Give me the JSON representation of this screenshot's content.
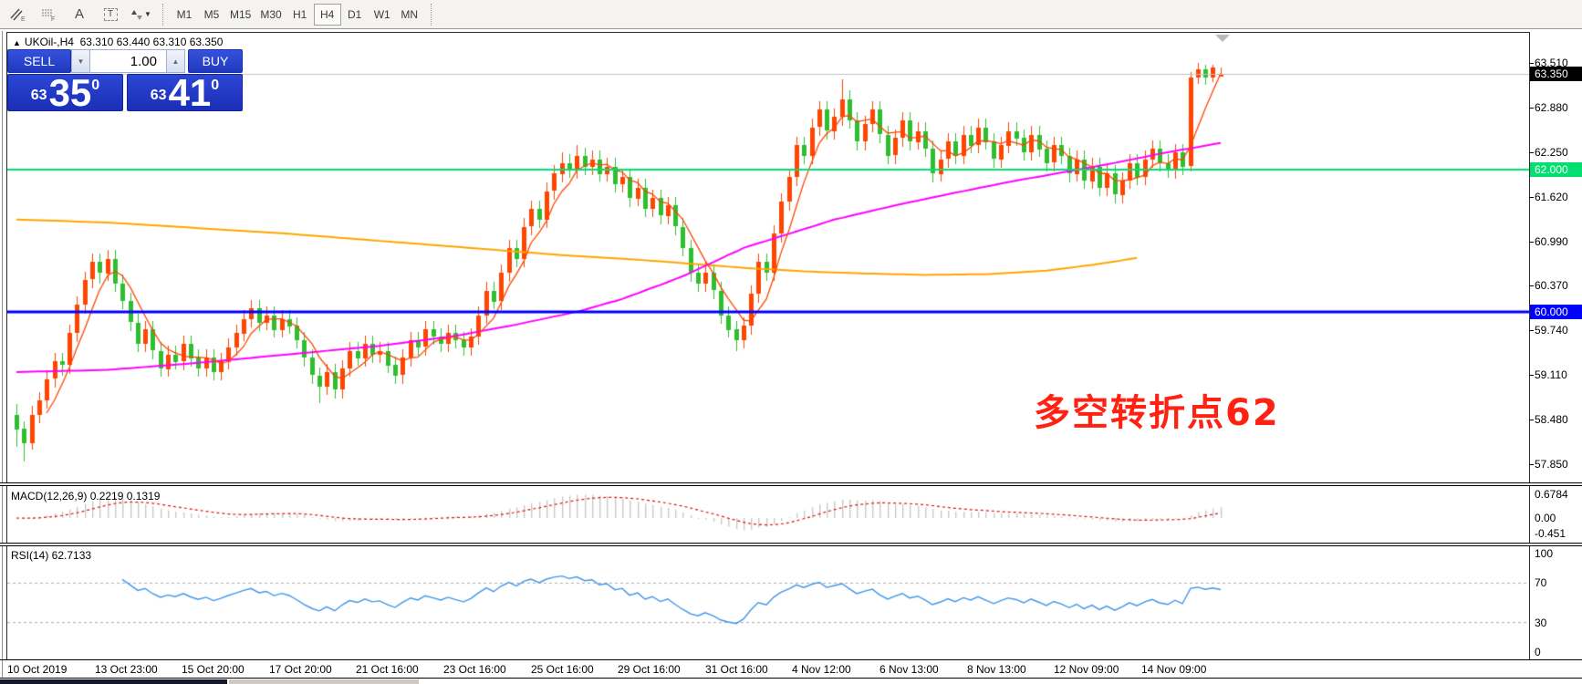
{
  "toolbar": {
    "icons": [
      {
        "name": "equidistant-channel-icon",
        "sub": "E"
      },
      {
        "name": "fibonacci-icon",
        "sub": "F"
      },
      {
        "name": "text-icon",
        "glyph": "A"
      },
      {
        "name": "text-label-icon",
        "glyph": "T"
      },
      {
        "name": "arrows-icon",
        "glyph": "▾"
      }
    ],
    "timeframes": [
      "M1",
      "M5",
      "M15",
      "M30",
      "H1",
      "H4",
      "D1",
      "W1",
      "MN"
    ],
    "active_timeframe": "H4"
  },
  "chart_header": {
    "arrow": "▲",
    "text": "UKOil-,H4  63.310 63.440 63.310 63.350"
  },
  "trade_panel": {
    "sell_label": "SELL",
    "buy_label": "BUY",
    "volume": "1.00",
    "spinner_down": "▼",
    "spinner_up": "▲",
    "sell_price_small": "63",
    "sell_price_big": "35",
    "sell_price_sup": "0",
    "buy_price_small": "63",
    "buy_price_big": "41",
    "buy_price_sup": "0"
  },
  "annotation": {
    "text": "多空转折点62",
    "color": "#ff2212"
  },
  "macd_panel": {
    "label": "MACD(12,26,9) 0.2219 0.1319"
  },
  "rsi_panel": {
    "label": "RSI(14) 62.7133"
  },
  "colors": {
    "candle_up": "#ff4500",
    "candle_down": "#2fbe2f",
    "ma_fast_red": "#ff4500",
    "ma_mid_magenta": "#ff00ff",
    "ma_slow_orange": "#ffa500",
    "level_green": "#00e070",
    "level_blue": "#0000ff",
    "current_price_line": "#c0c0c0",
    "current_price_badge": "#000000",
    "macd_histogram": "#c8c8c8",
    "macd_signal": "#e01010",
    "rsi_line": "#3e96e8",
    "rsi_level_dash": "#aaaaaa"
  },
  "chart_data": {
    "type": "candlestick",
    "symbol": "UKOil-",
    "timeframe": "H4",
    "price_axis_ticks": [
      63.51,
      62.88,
      62.25,
      61.62,
      60.99,
      60.37,
      59.74,
      59.11,
      58.48,
      57.85
    ],
    "levels": {
      "green_line": 62.0,
      "blue_line": 60.0,
      "current_price": 63.35
    },
    "badges": {
      "current": "63.350",
      "green": "62.000",
      "blue": "60.000"
    },
    "time_labels": [
      "10 Oct 2019",
      "13 Oct 23:00",
      "15 Oct 20:00",
      "17 Oct 20:00",
      "21 Oct 16:00",
      "23 Oct 16:00",
      "25 Oct 16:00",
      "29 Oct 16:00",
      "31 Oct 16:00",
      "4 Nov 12:00",
      "6 Nov 13:00",
      "8 Nov 13:00",
      "12 Nov 09:00",
      "14 Nov 09:00"
    ],
    "ohlc": [
      [
        58.55,
        58.7,
        58.1,
        58.35
      ],
      [
        58.35,
        58.45,
        57.88,
        58.15
      ],
      [
        58.15,
        58.67,
        58.05,
        58.55
      ],
      [
        58.55,
        58.87,
        58.43,
        58.75
      ],
      [
        58.75,
        59.17,
        58.63,
        59.05
      ],
      [
        59.05,
        59.42,
        58.93,
        59.3
      ],
      [
        59.3,
        59.42,
        59.1,
        59.25
      ],
      [
        59.25,
        59.82,
        59.13,
        59.7
      ],
      [
        59.7,
        60.22,
        59.58,
        60.1
      ],
      [
        60.1,
        60.57,
        59.98,
        60.45
      ],
      [
        60.45,
        60.82,
        60.33,
        60.7
      ],
      [
        60.7,
        60.82,
        60.4,
        60.55
      ],
      [
        60.55,
        60.87,
        60.43,
        60.75
      ],
      [
        60.75,
        60.87,
        60.28,
        60.4
      ],
      [
        60.4,
        60.52,
        60.03,
        60.15
      ],
      [
        60.15,
        60.27,
        59.73,
        59.85
      ],
      [
        59.85,
        59.97,
        59.43,
        59.55
      ],
      [
        59.55,
        59.87,
        59.43,
        59.75
      ],
      [
        59.75,
        59.87,
        59.33,
        59.45
      ],
      [
        59.45,
        59.57,
        59.08,
        59.2
      ],
      [
        59.2,
        59.52,
        59.08,
        59.4
      ],
      [
        59.4,
        59.52,
        59.18,
        59.3
      ],
      [
        59.3,
        59.67,
        59.18,
        59.55
      ],
      [
        59.55,
        59.67,
        59.23,
        59.35
      ],
      [
        59.35,
        59.47,
        59.08,
        59.2
      ],
      [
        59.2,
        59.47,
        59.08,
        59.35
      ],
      [
        59.35,
        59.47,
        59.03,
        59.15
      ],
      [
        59.15,
        59.42,
        59.03,
        59.3
      ],
      [
        59.3,
        59.62,
        59.18,
        59.5
      ],
      [
        59.5,
        59.82,
        59.38,
        59.7
      ],
      [
        59.7,
        60.02,
        59.58,
        59.9
      ],
      [
        59.9,
        60.17,
        59.78,
        60.05
      ],
      [
        60.05,
        60.17,
        59.73,
        59.85
      ],
      [
        59.85,
        60.07,
        59.73,
        59.95
      ],
      [
        59.95,
        60.07,
        59.63,
        59.75
      ],
      [
        59.75,
        60.02,
        59.63,
        59.9
      ],
      [
        59.9,
        60.02,
        59.68,
        59.8
      ],
      [
        59.8,
        59.92,
        59.48,
        59.6
      ],
      [
        59.6,
        59.72,
        59.23,
        59.35
      ],
      [
        59.35,
        59.47,
        58.98,
        59.1
      ],
      [
        59.1,
        59.22,
        58.72,
        58.95
      ],
      [
        58.95,
        59.27,
        58.83,
        59.15
      ],
      [
        59.15,
        59.27,
        58.78,
        58.9
      ],
      [
        58.9,
        59.32,
        58.78,
        59.2
      ],
      [
        59.2,
        59.57,
        59.08,
        59.45
      ],
      [
        59.45,
        59.57,
        59.23,
        59.35
      ],
      [
        59.35,
        59.67,
        59.23,
        59.55
      ],
      [
        59.55,
        59.67,
        59.28,
        59.4
      ],
      [
        59.4,
        59.57,
        59.28,
        59.45
      ],
      [
        59.45,
        59.57,
        59.13,
        59.25
      ],
      [
        59.25,
        59.37,
        58.98,
        59.1
      ],
      [
        59.1,
        59.47,
        58.98,
        59.35
      ],
      [
        59.35,
        59.72,
        59.23,
        59.6
      ],
      [
        59.6,
        59.72,
        59.38,
        59.5
      ],
      [
        59.5,
        59.87,
        59.38,
        59.75
      ],
      [
        59.75,
        59.87,
        59.53,
        59.65
      ],
      [
        59.65,
        59.77,
        59.43,
        59.55
      ],
      [
        59.55,
        59.82,
        59.43,
        59.7
      ],
      [
        59.7,
        59.82,
        59.48,
        59.6
      ],
      [
        59.6,
        59.72,
        59.38,
        59.5
      ],
      [
        59.5,
        59.77,
        59.38,
        59.65
      ],
      [
        59.65,
        60.07,
        59.53,
        59.95
      ],
      [
        59.95,
        60.42,
        59.83,
        60.3
      ],
      [
        60.3,
        60.42,
        60.03,
        60.15
      ],
      [
        60.15,
        60.67,
        60.03,
        60.55
      ],
      [
        60.55,
        61.02,
        60.43,
        60.9
      ],
      [
        60.9,
        61.02,
        60.63,
        60.75
      ],
      [
        60.75,
        61.32,
        60.63,
        61.2
      ],
      [
        61.2,
        61.57,
        61.08,
        61.45
      ],
      [
        61.45,
        61.57,
        61.18,
        61.3
      ],
      [
        61.3,
        61.82,
        61.18,
        61.7
      ],
      [
        61.7,
        62.07,
        61.58,
        61.95
      ],
      [
        61.95,
        62.25,
        61.83,
        62.1
      ],
      [
        62.1,
        62.22,
        61.88,
        62.0
      ],
      [
        62.0,
        62.35,
        61.88,
        62.2
      ],
      [
        62.2,
        62.32,
        61.93,
        62.05
      ],
      [
        62.05,
        62.28,
        61.93,
        62.15
      ],
      [
        62.15,
        62.27,
        61.83,
        61.95
      ],
      [
        61.95,
        62.17,
        61.83,
        62.05
      ],
      [
        62.05,
        62.17,
        61.68,
        61.8
      ],
      [
        61.8,
        62.02,
        61.68,
        61.9
      ],
      [
        61.9,
        62.02,
        61.48,
        61.6
      ],
      [
        61.6,
        61.87,
        61.48,
        61.75
      ],
      [
        61.75,
        61.87,
        61.33,
        61.45
      ],
      [
        61.45,
        61.72,
        61.33,
        61.6
      ],
      [
        61.6,
        61.72,
        61.23,
        61.35
      ],
      [
        61.35,
        61.62,
        61.23,
        61.5
      ],
      [
        61.5,
        61.62,
        61.08,
        61.2
      ],
      [
        61.2,
        61.32,
        60.78,
        60.9
      ],
      [
        60.9,
        61.02,
        60.43,
        60.55
      ],
      [
        60.55,
        60.67,
        60.28,
        60.4
      ],
      [
        60.4,
        60.7,
        60.28,
        60.55
      ],
      [
        60.55,
        60.67,
        60.18,
        60.3
      ],
      [
        60.3,
        60.42,
        59.83,
        59.95
      ],
      [
        59.95,
        60.07,
        59.63,
        59.75
      ],
      [
        59.75,
        59.87,
        59.45,
        59.6
      ],
      [
        59.6,
        59.92,
        59.48,
        59.8
      ],
      [
        59.8,
        60.37,
        59.68,
        60.25
      ],
      [
        60.25,
        60.82,
        60.13,
        60.7
      ],
      [
        60.7,
        60.82,
        60.43,
        60.55
      ],
      [
        60.55,
        61.22,
        60.43,
        61.1
      ],
      [
        61.1,
        61.67,
        60.98,
        61.55
      ],
      [
        61.55,
        62.02,
        61.43,
        61.9
      ],
      [
        61.9,
        62.47,
        61.78,
        62.35
      ],
      [
        62.35,
        62.47,
        62.08,
        62.2
      ],
      [
        62.2,
        62.72,
        62.08,
        62.6
      ],
      [
        62.6,
        62.97,
        62.48,
        62.85
      ],
      [
        62.85,
        62.97,
        62.43,
        62.55
      ],
      [
        62.55,
        62.87,
        62.43,
        62.75
      ],
      [
        62.75,
        63.28,
        62.63,
        63.0
      ],
      [
        63.0,
        63.12,
        62.58,
        62.7
      ],
      [
        62.7,
        62.82,
        62.28,
        62.4
      ],
      [
        62.4,
        62.77,
        62.28,
        62.65
      ],
      [
        62.65,
        62.97,
        62.53,
        62.85
      ],
      [
        62.85,
        62.97,
        62.38,
        62.5
      ],
      [
        62.5,
        62.62,
        62.08,
        62.2
      ],
      [
        62.2,
        62.57,
        62.08,
        62.45
      ],
      [
        62.45,
        62.82,
        62.33,
        62.7
      ],
      [
        62.7,
        62.82,
        62.28,
        62.4
      ],
      [
        62.4,
        62.67,
        62.28,
        62.55
      ],
      [
        62.55,
        62.67,
        62.18,
        62.3
      ],
      [
        62.3,
        62.42,
        61.83,
        61.95
      ],
      [
        61.95,
        62.27,
        61.83,
        62.15
      ],
      [
        62.15,
        62.52,
        62.03,
        62.4
      ],
      [
        62.4,
        62.52,
        62.08,
        62.2
      ],
      [
        62.2,
        62.62,
        62.08,
        62.5
      ],
      [
        62.5,
        62.62,
        62.23,
        62.35
      ],
      [
        62.35,
        62.72,
        62.23,
        62.6
      ],
      [
        62.6,
        62.72,
        62.28,
        62.4
      ],
      [
        62.4,
        62.52,
        62.03,
        62.15
      ],
      [
        62.15,
        62.47,
        62.03,
        62.35
      ],
      [
        62.35,
        62.67,
        62.23,
        62.55
      ],
      [
        62.55,
        62.67,
        62.33,
        62.45
      ],
      [
        62.45,
        62.57,
        62.13,
        62.25
      ],
      [
        62.25,
        62.62,
        62.13,
        62.5
      ],
      [
        62.5,
        62.62,
        62.18,
        62.3
      ],
      [
        62.3,
        62.42,
        61.98,
        62.1
      ],
      [
        62.1,
        62.47,
        61.98,
        62.35
      ],
      [
        62.35,
        62.47,
        62.08,
        62.2
      ],
      [
        62.2,
        62.32,
        61.83,
        61.95
      ],
      [
        61.95,
        62.27,
        61.83,
        62.15
      ],
      [
        62.15,
        62.27,
        61.73,
        61.85
      ],
      [
        61.85,
        62.17,
        61.73,
        62.05
      ],
      [
        62.05,
        62.17,
        61.63,
        61.75
      ],
      [
        61.75,
        62.07,
        61.63,
        61.95
      ],
      [
        61.95,
        62.07,
        61.53,
        61.65
      ],
      [
        61.65,
        61.97,
        61.53,
        61.85
      ],
      [
        61.85,
        62.22,
        61.73,
        62.1
      ],
      [
        62.1,
        62.22,
        61.78,
        61.9
      ],
      [
        61.9,
        62.27,
        61.78,
        62.15
      ],
      [
        62.15,
        62.42,
        62.03,
        62.3
      ],
      [
        62.3,
        62.42,
        61.98,
        62.1
      ],
      [
        62.1,
        62.22,
        61.88,
        62.0
      ],
      [
        62.0,
        62.37,
        61.88,
        62.25
      ],
      [
        62.25,
        62.37,
        61.93,
        62.05
      ],
      [
        62.05,
        63.38,
        61.98,
        63.3
      ],
      [
        63.3,
        63.51,
        63.22,
        63.42
      ],
      [
        63.42,
        63.48,
        63.2,
        63.3
      ],
      [
        63.3,
        63.49,
        63.24,
        63.44
      ],
      [
        63.31,
        63.44,
        63.31,
        63.35
      ]
    ],
    "ma_slow_orange_waypoints": [
      [
        0,
        61.3
      ],
      [
        12,
        61.26
      ],
      [
        24,
        61.18
      ],
      [
        36,
        61.1
      ],
      [
        48,
        61.0
      ],
      [
        60,
        60.9
      ],
      [
        72,
        60.8
      ],
      [
        84,
        60.72
      ],
      [
        96,
        60.62
      ],
      [
        104,
        60.57
      ],
      [
        112,
        60.54
      ],
      [
        120,
        60.52
      ],
      [
        128,
        60.53
      ],
      [
        136,
        60.58
      ],
      [
        142,
        60.66
      ],
      [
        148,
        60.76
      ]
    ],
    "ma_mid_magenta_waypoints": [
      [
        0,
        59.15
      ],
      [
        12,
        59.18
      ],
      [
        24,
        59.28
      ],
      [
        36,
        59.4
      ],
      [
        48,
        59.52
      ],
      [
        58,
        59.66
      ],
      [
        66,
        59.82
      ],
      [
        74,
        60.0
      ],
      [
        80,
        60.18
      ],
      [
        88,
        60.5
      ],
      [
        96,
        60.9
      ],
      [
        102,
        61.1
      ],
      [
        108,
        61.3
      ],
      [
        116,
        61.5
      ],
      [
        124,
        61.68
      ],
      [
        132,
        61.85
      ],
      [
        140,
        62.0
      ],
      [
        146,
        62.12
      ],
      [
        152,
        62.25
      ],
      [
        159,
        62.38
      ]
    ],
    "ma_fast_red": {
      "type": "sma",
      "period": 5
    },
    "macd": {
      "fast": 12,
      "slow": 26,
      "signal_period": 9,
      "last_main": 0.2219,
      "last_signal": 0.1319,
      "axis_labels": [
        "0.6784",
        "0.00",
        "-0.451"
      ],
      "axis_values": [
        0.6784,
        0.0,
        -0.451
      ]
    },
    "rsi": {
      "period": 14,
      "last": 62.7133,
      "levels": [
        70,
        30
      ],
      "axis_labels": [
        "100",
        "70",
        "30",
        "0"
      ],
      "axis_values": [
        100,
        70,
        30,
        0
      ]
    }
  }
}
